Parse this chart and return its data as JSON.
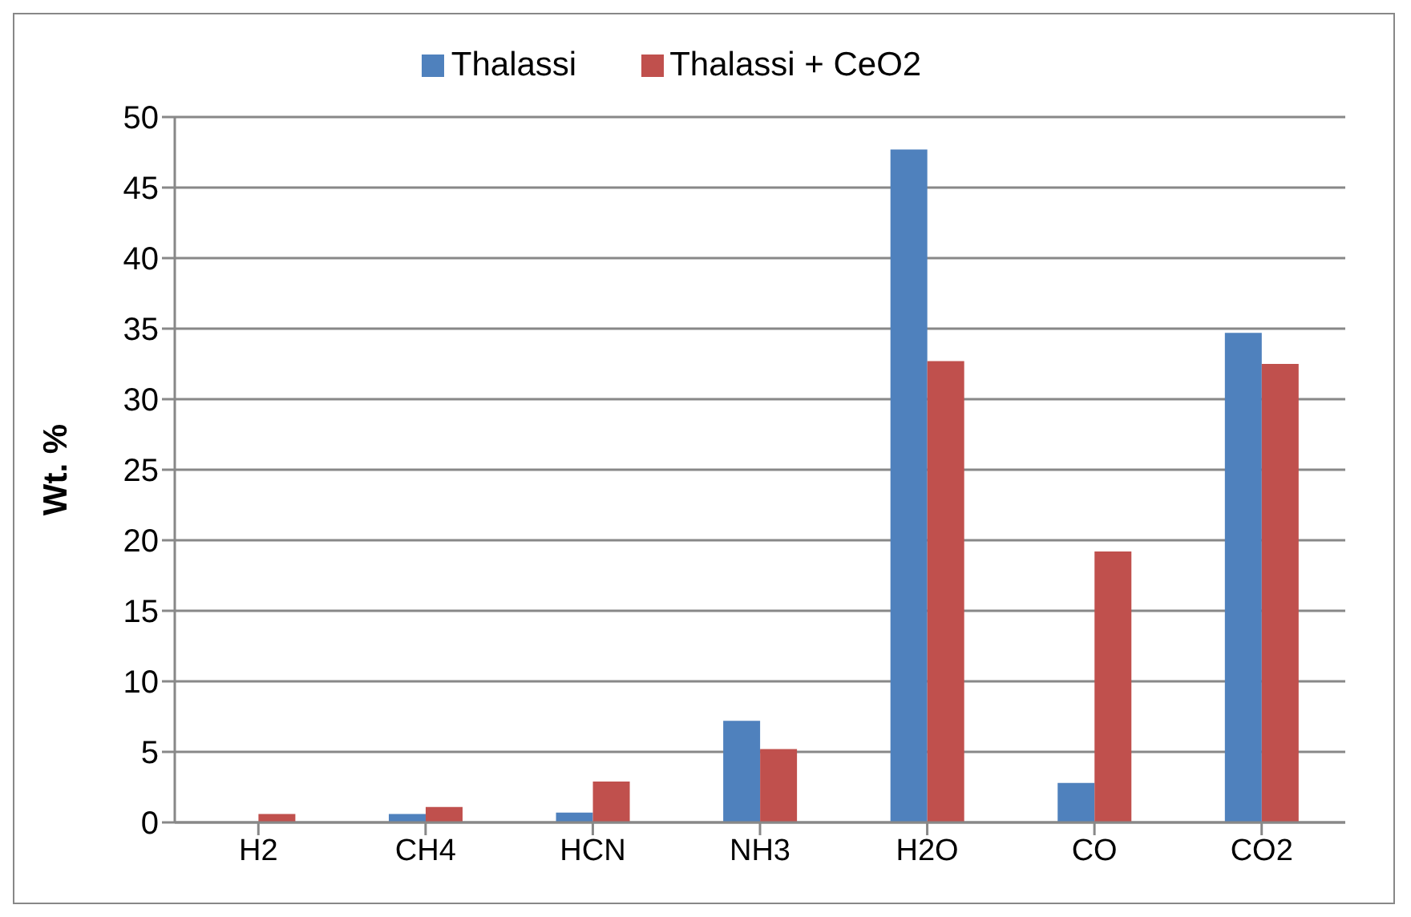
{
  "chart_data": {
    "type": "bar",
    "ylabel": "Wt. %",
    "categories": [
      "H2",
      "CH4",
      "HCN",
      "NH3",
      "H2O",
      "CO",
      "CO2"
    ],
    "series": [
      {
        "name": "Thalassi",
        "color": "#4f81bd",
        "values": [
          0,
          0.6,
          0.7,
          7.2,
          47.7,
          2.8,
          34.7
        ]
      },
      {
        "name": "Thalassi + CeO2",
        "color": "#c0504d",
        "values": [
          0.6,
          1.1,
          2.9,
          5.2,
          32.7,
          19.2,
          32.5
        ]
      }
    ],
    "ylim": [
      0,
      50
    ],
    "yticks": [
      0,
      5,
      10,
      15,
      20,
      25,
      30,
      35,
      40,
      45,
      50
    ],
    "grid": "y",
    "legend": "top"
  }
}
